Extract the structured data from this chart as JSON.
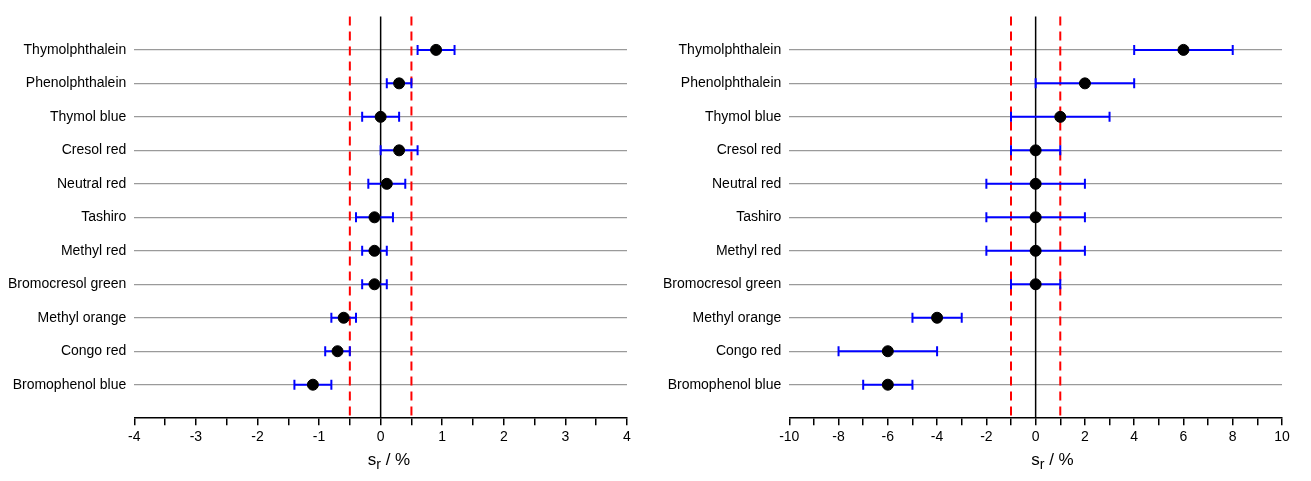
{
  "chart_data": [
    {
      "type": "scatter",
      "orientation": "horizontal",
      "xlabel": "s$_{r}$ / %",
      "categories": [
        "Thymolphthalein",
        "Phenolphthalein",
        "Thymol blue",
        "Cresol red",
        "Neutral red",
        "Tashiro",
        "Methyl red",
        "Bromocresol green",
        "Methyl orange",
        "Congo red",
        "Bromophenol blue"
      ],
      "series": [
        {
          "color": "#000000",
          "values": [
            0.9,
            0.3,
            0,
            0.3,
            0.1,
            -0.1,
            -0.1,
            -0.1,
            -0.6,
            -0.7,
            -1.1
          ],
          "errors": [
            0.3,
            0.2,
            0.3,
            0.3,
            0.3,
            0.3,
            0.2,
            0.2,
            0.2,
            0.2,
            0.3
          ]
        }
      ],
      "xlim": [
        -4,
        4
      ],
      "xticks": [
        -4,
        {
          "value": -3.5,
          "label": null
        },
        -3,
        {
          "value": -2.5,
          "label": null
        },
        -2,
        {
          "value": -1.5,
          "label": null
        },
        -1,
        {
          "value": -0.5,
          "label": null
        },
        0,
        {
          "value": 0.5,
          "label": null
        },
        1,
        {
          "value": 1.5,
          "label": null
        },
        2,
        {
          "value": 2.5,
          "label": null
        },
        3,
        {
          "value": 3.5,
          "label": null
        },
        4
      ],
      "ref_lines": [
        {
          "axis": "x",
          "value": 0,
          "color": "#000000",
          "line_style": "solid"
        },
        {
          "axis": "x",
          "value": -0.5,
          "color": "#ff0000",
          "line_style": "dashed"
        },
        {
          "axis": "x",
          "value": 0.5,
          "color": "#ff0000",
          "line_style": "dashed"
        }
      ],
      "grid": "y",
      "marker": "circle"
    },
    {
      "type": "scatter",
      "orientation": "horizontal",
      "xlabel": "s$_{r}$ / %",
      "categories": [
        "Thymolphthalein",
        "Phenolphthalein",
        "Thymol blue",
        "Cresol red",
        "Neutral red",
        "Tashiro",
        "Methyl red",
        "Bromocresol green",
        "Methyl orange",
        "Congo red",
        "Bromophenol blue"
      ],
      "series": [
        {
          "color": "#000000",
          "values": [
            6,
            2,
            1,
            0,
            0,
            0,
            0,
            0,
            -4,
            -6,
            -6
          ],
          "errors": [
            2,
            2,
            2,
            1,
            2,
            2,
            2,
            1,
            1,
            2,
            1
          ]
        }
      ],
      "xlim": [
        -10,
        10
      ],
      "xticks": [
        -10,
        {
          "value": -9,
          "label": null
        },
        -8,
        {
          "value": -7,
          "label": null
        },
        -6,
        {
          "value": -5,
          "label": null
        },
        -4,
        {
          "value": -3,
          "label": null
        },
        -2,
        {
          "value": -1,
          "label": null
        },
        0,
        {
          "value": 1,
          "label": null
        },
        2,
        {
          "value": 3,
          "label": null
        },
        4,
        {
          "value": 5,
          "label": null
        },
        6,
        {
          "value": 7,
          "label": null
        },
        8,
        {
          "value": 9,
          "label": null
        },
        10
      ],
      "ref_lines": [
        {
          "axis": "x",
          "value": 0,
          "color": "#000000",
          "line_style": "solid"
        },
        {
          "axis": "x",
          "value": -1,
          "color": "#ff0000",
          "line_style": "dashed"
        },
        {
          "axis": "x",
          "value": 1,
          "color": "#ff0000",
          "line_style": "dashed"
        }
      ],
      "grid": "y",
      "marker": "circle"
    }
  ]
}
